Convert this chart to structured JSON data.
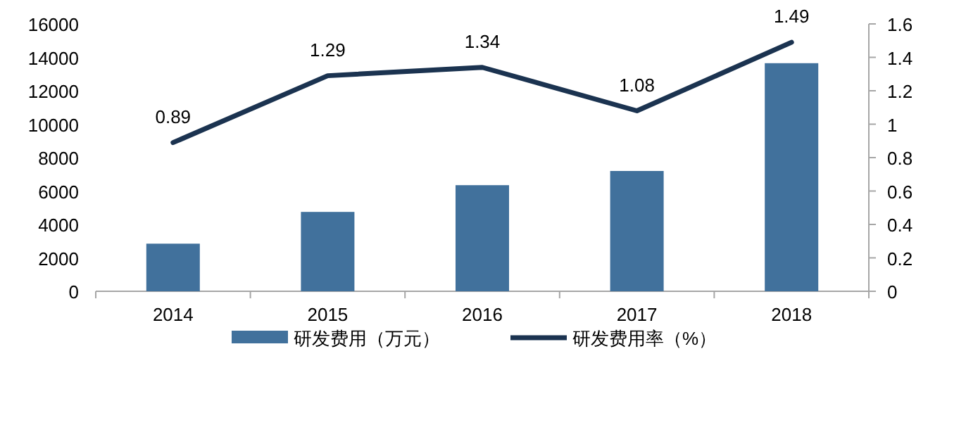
{
  "chart_data": {
    "type": "bar",
    "categories": [
      "2014",
      "2015",
      "2016",
      "2017",
      "2018"
    ],
    "series": [
      {
        "name": "研发费用（万元）",
        "color": "#41719c",
        "values": [
          2850,
          4750,
          6350,
          7200,
          13650
        ]
      },
      {
        "name": "研发费用率（%）",
        "type": "line",
        "axis": "y2",
        "color": "#1b3350",
        "values": [
          0.89,
          1.29,
          1.34,
          1.08,
          1.49
        ],
        "value_labels": [
          "0.89",
          "1.29",
          "1.34",
          "1.08",
          "1.49"
        ]
      }
    ],
    "ylim": [
      0,
      16000
    ],
    "yticks": [
      0,
      2000,
      4000,
      6000,
      8000,
      10000,
      12000,
      14000,
      16000
    ],
    "y2lim": [
      0,
      1.6
    ],
    "y2ticks": [
      0,
      0.2,
      0.4,
      0.6,
      0.8,
      1,
      1.2,
      1.4,
      1.6
    ],
    "legend": "bottom",
    "marker": "none",
    "grid": false
  }
}
